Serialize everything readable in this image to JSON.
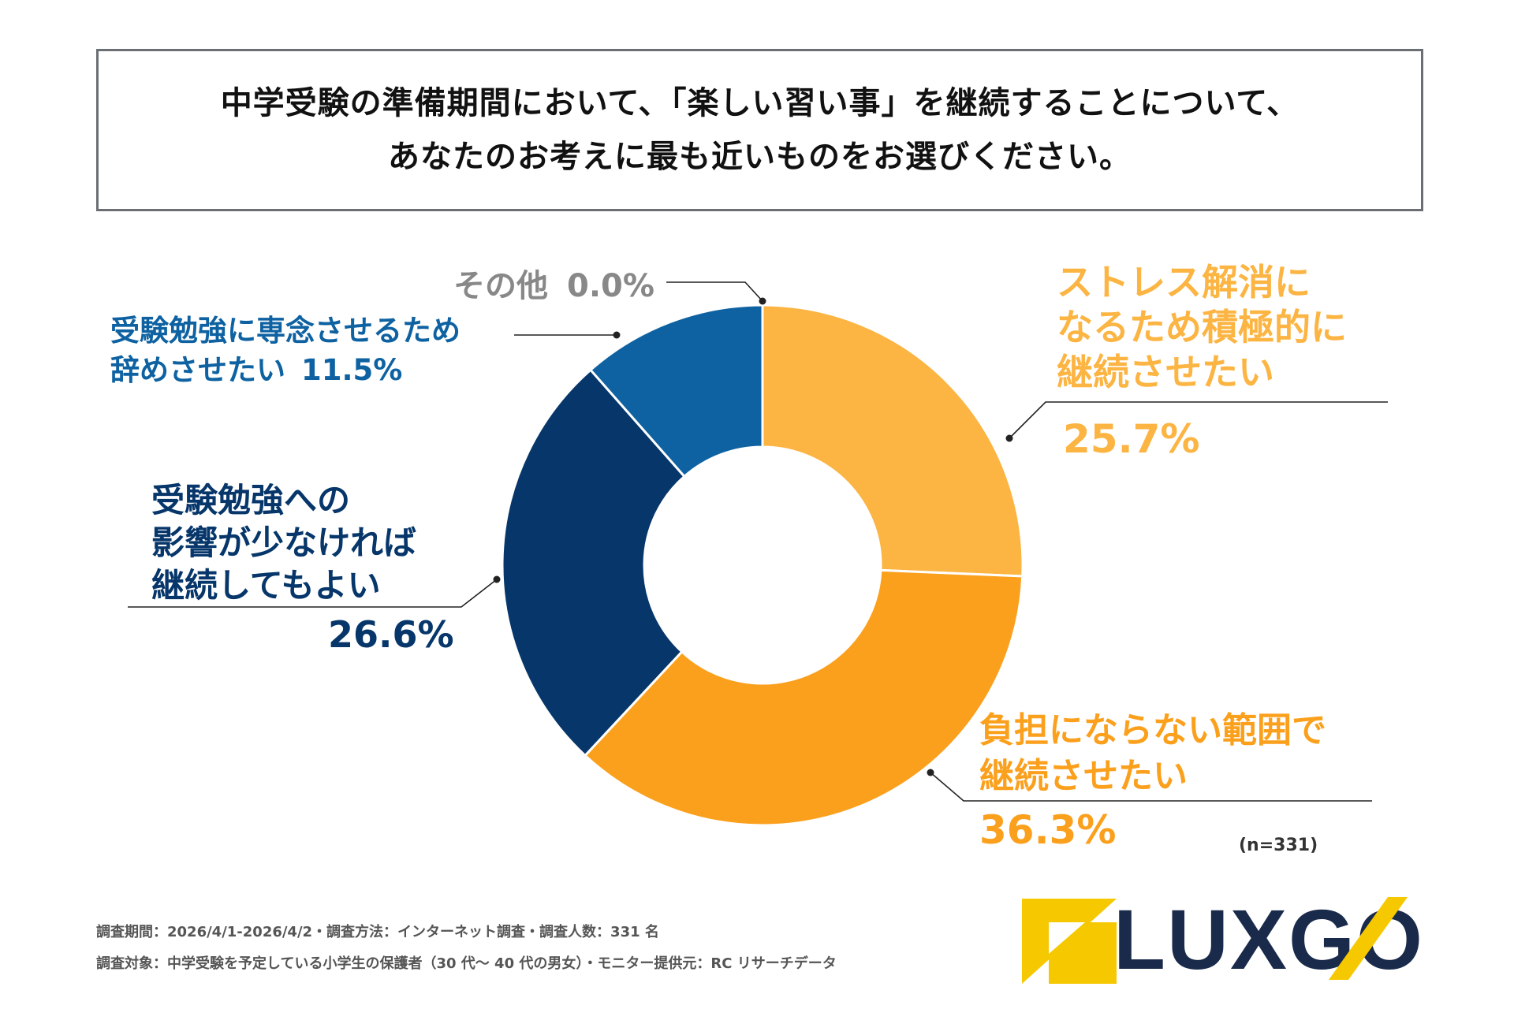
{
  "question": {
    "line1": "中学受験の準備期間において、「楽しい習い事」を継続することについて、",
    "line2": "あなたのお考えに最も近いものをお選びください。"
  },
  "chart_data": {
    "type": "pie",
    "variant": "donut",
    "start": "12 o'clock, clockwise",
    "slices": [
      {
        "name": "ストレス解消になるため積極的に継続させたい",
        "value": 25.7,
        "value_label": "25.7%",
        "color": "#fcb442",
        "label_lines": [
          "ストレス解消に",
          "なるため積極的に",
          "継続させたい"
        ]
      },
      {
        "name": "負担にならない範囲で継続させたい",
        "value": 36.3,
        "value_label": "36.3%",
        "color": "#fba01c",
        "label_lines": [
          "負担にならない範囲で",
          "継続させたい"
        ]
      },
      {
        "name": "受験勉強への影響が少なければ継続してもよい",
        "value": 26.6,
        "value_label": "26.6%",
        "color": "#06366a",
        "label_lines": [
          "受験勉強への",
          "影響が少なければ",
          "継続してもよい"
        ]
      },
      {
        "name": "受験勉強に専念させるため辞めさせたい",
        "value": 11.5,
        "value_label": "11.5%",
        "color": "#0e62a2",
        "label_lines": [
          "受験勉強に専念させるため",
          "辞めさせたい"
        ]
      },
      {
        "name": "その他",
        "value": 0.0,
        "value_label": "0.0%",
        "color": "#888888",
        "label_lines": [
          "その他"
        ]
      }
    ],
    "sample": "(n=331)"
  },
  "footer": {
    "line1": "調査期間：2026/4/1-2026/4/2・調査方法：インターネット調査・調査人数：331 名",
    "line2": "調査対象：中学受験を予定している小学生の保護者（30 代〜 40 代の男女）・モニター提供元：RC リサーチデータ"
  },
  "logo": {
    "text": "LUXGO",
    "brand_yellow": "#f5c800",
    "brand_navy": "#1a2a4a"
  }
}
